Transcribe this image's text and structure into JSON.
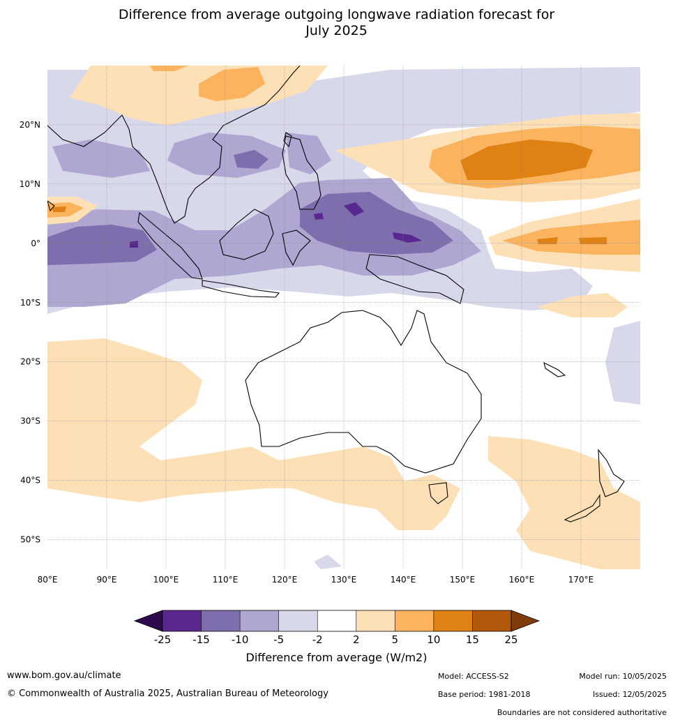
{
  "title": {
    "line1": "Difference from average outgoing longwave radiation forecast for",
    "line2": "July 2025"
  },
  "map": {
    "lon_range": [
      80,
      180
    ],
    "lat_range": [
      -55,
      30
    ],
    "lon_ticks": [
      "80°E",
      "90°E",
      "100°E",
      "110°E",
      "120°E",
      "130°E",
      "140°E",
      "150°E",
      "160°E",
      "170°E"
    ],
    "lat_ticks": [
      "20°N",
      "10°N",
      "0°",
      "10°S",
      "20°S",
      "30°S",
      "40°S",
      "50°S"
    ]
  },
  "legend": {
    "title": "Difference from average (W/m2)",
    "ticks": [
      "-25",
      "-15",
      "-10",
      "-5",
      "-2",
      "2",
      "5",
      "10",
      "15",
      "25"
    ],
    "colors": [
      "#2d0a4e",
      "#59288f",
      "#7f6ead",
      "#afa6d1",
      "#d8d8eb",
      "#ffffff",
      "#fde0b6",
      "#fbb35e",
      "#e08114",
      "#b3580a",
      "#7f3b08"
    ]
  },
  "footer": {
    "website": "www.bom.gov.au/climate",
    "copyright": "© Commonwealth of Australia 2025, Australian Bureau of Meteorology",
    "model": "Model: ACCESS-S2",
    "base_period": "Base period: 1981-2018",
    "model_run": "Model run: 10/05/2025",
    "issued": "Issued: 12/05/2025",
    "disclaimer": "Boundaries are not considered authoritative"
  }
}
